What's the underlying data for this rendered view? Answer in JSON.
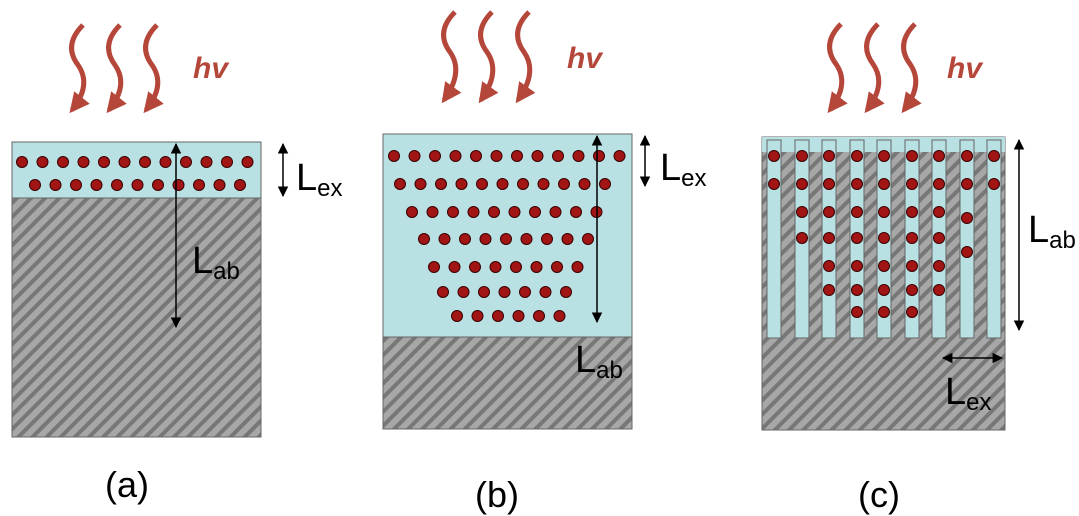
{
  "photon_label": "hv",
  "panels": [
    {
      "caption": "(a)",
      "excitation_label": {
        "main": "L",
        "sub": "ex"
      },
      "absorption_label": {
        "main": "L",
        "sub": "ab"
      }
    },
    {
      "caption": "(b)",
      "excitation_label": {
        "main": "L",
        "sub": "ex"
      },
      "absorption_label": {
        "main": "L",
        "sub": "ab"
      }
    },
    {
      "caption": "(c)",
      "excitation_label": {
        "main": "L",
        "sub": "ex"
      },
      "absorption_label": {
        "main": "L",
        "sub": "ab"
      }
    }
  ],
  "colors": {
    "film": "#b9e0e3",
    "substrate": "#a7a7a7",
    "hatch": "#777777",
    "particle": "#a11515",
    "photon": "#b5473a"
  }
}
